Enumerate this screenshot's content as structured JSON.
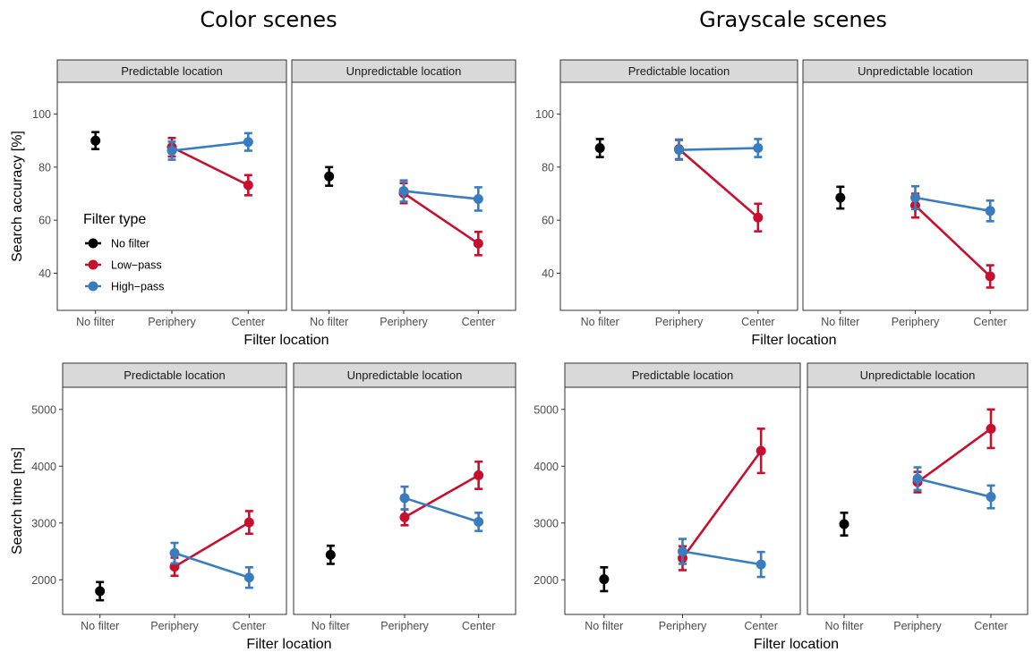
{
  "section_titles": [
    "Color scenes",
    "Grayscale scenes"
  ],
  "legend": {
    "title": "Filter type",
    "items": [
      {
        "label": "No filter",
        "color": "#000000"
      },
      {
        "label": "Low−pass",
        "color": "#c8102e"
      },
      {
        "label": "High−pass",
        "color": "#3a7dbf"
      }
    ]
  },
  "colors": {
    "no_filter": "#000000",
    "low_pass": "#c8102e",
    "high_pass": "#3a7dbf",
    "strip_fill": "#d9d9d9",
    "frame": "#333333"
  },
  "chart_data": [
    {
      "type": "line",
      "group": "Color scenes",
      "metric": "accuracy",
      "ylabel": "Search accuracy [%]",
      "xlabel": "Filter location",
      "ylim": [
        26,
        112
      ],
      "yticks": [
        40,
        60,
        80,
        100
      ],
      "categories": [
        "No filter",
        "Periphery",
        "Center"
      ],
      "facets": [
        {
          "title": "Predictable location",
          "series": [
            {
              "name": "No filter",
              "points": [
                {
                  "x": "No filter",
                  "y": 90,
                  "lo": 86.8,
                  "hi": 93.2
                }
              ]
            },
            {
              "name": "Low−pass",
              "points": [
                {
                  "x": "Periphery",
                  "y": 87.5,
                  "lo": 84.0,
                  "hi": 91.0
                },
                {
                  "x": "Center",
                  "y": 73.2,
                  "lo": 69.4,
                  "hi": 77.0
                }
              ]
            },
            {
              "name": "High−pass",
              "points": [
                {
                  "x": "Periphery",
                  "y": 86.2,
                  "lo": 82.8,
                  "hi": 89.6
                },
                {
                  "x": "Center",
                  "y": 89.5,
                  "lo": 86.2,
                  "hi": 92.8
                }
              ]
            }
          ]
        },
        {
          "title": "Unpredictable location",
          "series": [
            {
              "name": "No filter",
              "points": [
                {
                  "x": "No filter",
                  "y": 76.5,
                  "lo": 73.0,
                  "hi": 80.0
                }
              ]
            },
            {
              "name": "Low−pass",
              "points": [
                {
                  "x": "Periphery",
                  "y": 70.2,
                  "lo": 66.4,
                  "hi": 74.0
                },
                {
                  "x": "Center",
                  "y": 51.2,
                  "lo": 46.8,
                  "hi": 55.6
                }
              ]
            },
            {
              "name": "High−pass",
              "points": [
                {
                  "x": "Periphery",
                  "y": 71.0,
                  "lo": 67.0,
                  "hi": 75.0
                },
                {
                  "x": "Center",
                  "y": 68.0,
                  "lo": 63.6,
                  "hi": 72.4
                }
              ]
            }
          ]
        }
      ]
    },
    {
      "type": "line",
      "group": "Grayscale scenes",
      "metric": "accuracy",
      "ylabel": "",
      "xlabel": "Filter location",
      "ylim": [
        26,
        112
      ],
      "yticks": [
        40,
        60,
        80,
        100
      ],
      "categories": [
        "No filter",
        "Periphery",
        "Center"
      ],
      "facets": [
        {
          "title": "Predictable location",
          "series": [
            {
              "name": "No filter",
              "points": [
                {
                  "x": "No filter",
                  "y": 87.2,
                  "lo": 83.8,
                  "hi": 90.6
                }
              ]
            },
            {
              "name": "Low−pass",
              "points": [
                {
                  "x": "Periphery",
                  "y": 86.8,
                  "lo": 83.0,
                  "hi": 90.4
                },
                {
                  "x": "Center",
                  "y": 61.0,
                  "lo": 55.8,
                  "hi": 66.2
                }
              ]
            },
            {
              "name": "High−pass",
              "points": [
                {
                  "x": "Periphery",
                  "y": 86.5,
                  "lo": 82.8,
                  "hi": 90.2
                },
                {
                  "x": "Center",
                  "y": 87.2,
                  "lo": 83.8,
                  "hi": 90.6
                }
              ]
            }
          ]
        },
        {
          "title": "Unpredictable location",
          "series": [
            {
              "name": "No filter",
              "points": [
                {
                  "x": "No filter",
                  "y": 68.5,
                  "lo": 64.4,
                  "hi": 72.6
                }
              ]
            },
            {
              "name": "Low−pass",
              "points": [
                {
                  "x": "Periphery",
                  "y": 65.5,
                  "lo": 61.0,
                  "hi": 70.0
                },
                {
                  "x": "Center",
                  "y": 38.8,
                  "lo": 34.6,
                  "hi": 43.0
                }
              ]
            },
            {
              "name": "High−pass",
              "points": [
                {
                  "x": "Periphery",
                  "y": 68.5,
                  "lo": 64.2,
                  "hi": 72.8
                },
                {
                  "x": "Center",
                  "y": 63.5,
                  "lo": 59.6,
                  "hi": 67.4
                }
              ]
            }
          ]
        }
      ]
    },
    {
      "type": "line",
      "group": "Color scenes",
      "metric": "time",
      "ylabel": "Search time [ms]",
      "xlabel": "Filter location",
      "ylim": [
        1390,
        5390
      ],
      "yticks": [
        2000,
        3000,
        4000,
        5000
      ],
      "categories": [
        "No filter",
        "Periphery",
        "Center"
      ],
      "facets": [
        {
          "title": "Predictable location",
          "series": [
            {
              "name": "No filter",
              "points": [
                {
                  "x": "No filter",
                  "y": 1800,
                  "lo": 1640,
                  "hi": 1960
                }
              ]
            },
            {
              "name": "Low−pass",
              "points": [
                {
                  "x": "Periphery",
                  "y": 2230,
                  "lo": 2070,
                  "hi": 2390
                },
                {
                  "x": "Center",
                  "y": 3010,
                  "lo": 2810,
                  "hi": 3210
                }
              ]
            },
            {
              "name": "High−pass",
              "points": [
                {
                  "x": "Periphery",
                  "y": 2470,
                  "lo": 2290,
                  "hi": 2650
                },
                {
                  "x": "Center",
                  "y": 2040,
                  "lo": 1860,
                  "hi": 2220
                }
              ]
            }
          ]
        },
        {
          "title": "Unpredictable location",
          "series": [
            {
              "name": "No filter",
              "points": [
                {
                  "x": "No filter",
                  "y": 2440,
                  "lo": 2280,
                  "hi": 2600
                }
              ]
            },
            {
              "name": "Low−pass",
              "points": [
                {
                  "x": "Periphery",
                  "y": 3100,
                  "lo": 2960,
                  "hi": 3240
                },
                {
                  "x": "Center",
                  "y": 3840,
                  "lo": 3600,
                  "hi": 4080
                }
              ]
            },
            {
              "name": "High−pass",
              "points": [
                {
                  "x": "Periphery",
                  "y": 3440,
                  "lo": 3240,
                  "hi": 3640
                },
                {
                  "x": "Center",
                  "y": 3020,
                  "lo": 2860,
                  "hi": 3180
                }
              ]
            }
          ]
        }
      ]
    },
    {
      "type": "line",
      "group": "Grayscale scenes",
      "metric": "time",
      "ylabel": "",
      "xlabel": "Filter location",
      "ylim": [
        1390,
        5390
      ],
      "yticks": [
        2000,
        3000,
        4000,
        5000
      ],
      "categories": [
        "No filter",
        "Periphery",
        "Center"
      ],
      "facets": [
        {
          "title": "Predictable location",
          "series": [
            {
              "name": "No filter",
              "points": [
                {
                  "x": "No filter",
                  "y": 2010,
                  "lo": 1800,
                  "hi": 2220
                }
              ]
            },
            {
              "name": "Low−pass",
              "points": [
                {
                  "x": "Periphery",
                  "y": 2380,
                  "lo": 2170,
                  "hi": 2590
                },
                {
                  "x": "Center",
                  "y": 4270,
                  "lo": 3880,
                  "hi": 4660
                }
              ]
            },
            {
              "name": "High−pass",
              "points": [
                {
                  "x": "Periphery",
                  "y": 2500,
                  "lo": 2280,
                  "hi": 2720
                },
                {
                  "x": "Center",
                  "y": 2270,
                  "lo": 2050,
                  "hi": 2490
                }
              ]
            }
          ]
        },
        {
          "title": "Unpredictable location",
          "series": [
            {
              "name": "No filter",
              "points": [
                {
                  "x": "No filter",
                  "y": 2980,
                  "lo": 2780,
                  "hi": 3180
                }
              ]
            },
            {
              "name": "Low−pass",
              "points": [
                {
                  "x": "Periphery",
                  "y": 3720,
                  "lo": 3540,
                  "hi": 3900
                },
                {
                  "x": "Center",
                  "y": 4660,
                  "lo": 4320,
                  "hi": 5000
                }
              ]
            },
            {
              "name": "High−pass",
              "points": [
                {
                  "x": "Periphery",
                  "y": 3780,
                  "lo": 3580,
                  "hi": 3980
                },
                {
                  "x": "Center",
                  "y": 3460,
                  "lo": 3260,
                  "hi": 3660
                }
              ]
            }
          ]
        }
      ]
    }
  ]
}
